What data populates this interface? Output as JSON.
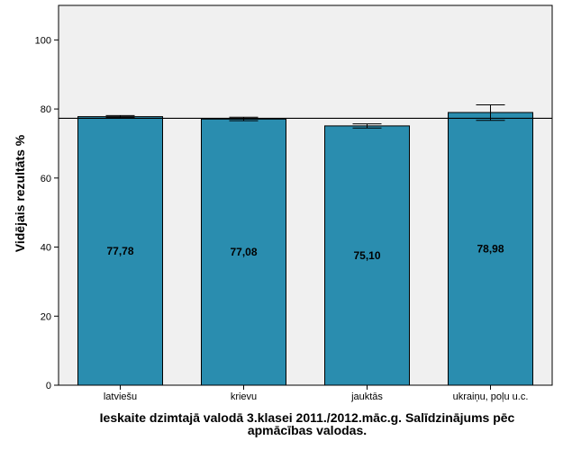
{
  "colors": {
    "bar_fill": "#2A8DAF",
    "bar_stroke": "#000000",
    "plot_bg": "#F0F0F0",
    "reference_line": "#000000"
  },
  "chart_data": {
    "type": "bar",
    "title": "",
    "xlabel_line1": "Ieskaite dzimtajā valodā 3.klasei 2011./2012.māc.g. Salīdzinājums pēc",
    "xlabel_line2": "apmācības valodas.",
    "ylabel": "Vidējais rezultāts %",
    "ylim": [
      0,
      110
    ],
    "yticks": [
      0,
      20,
      40,
      60,
      80,
      100
    ],
    "categories": [
      "latviešu",
      "krievu",
      "jauktās",
      "ukraiņu, poļu u.c."
    ],
    "values": [
      77.78,
      77.08,
      75.1,
      78.98
    ],
    "value_labels": [
      "77,78",
      "77,08",
      "75,10",
      "78,98"
    ],
    "error_bars": [
      {
        "low": 77.5,
        "high": 78.1
      },
      {
        "low": 76.6,
        "high": 77.6
      },
      {
        "low": 74.5,
        "high": 75.7
      },
      {
        "low": 76.7,
        "high": 81.2
      }
    ],
    "reference_line": 77.3,
    "grid": false,
    "legend": "none"
  }
}
